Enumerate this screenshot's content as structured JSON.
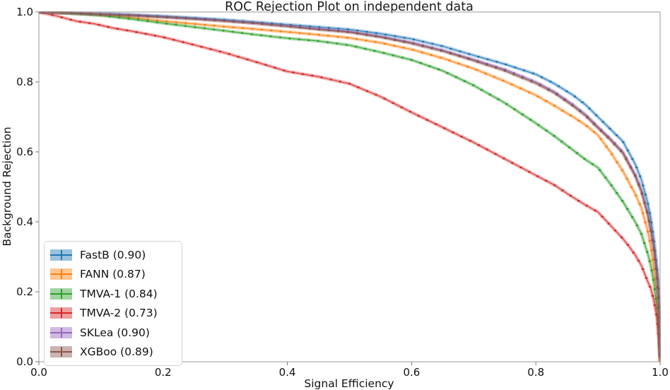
{
  "chart_data": {
    "type": "line",
    "title": "ROC Rejection Plot on independent data",
    "xlabel": "Signal Efficiency",
    "ylabel": "Background Rejection",
    "xlim": [
      0.0,
      1.0
    ],
    "ylim": [
      0.0,
      1.0
    ],
    "xtick_labels": [
      "0.0",
      "0.2",
      "0.4",
      "0.6",
      "0.8",
      "1.0"
    ],
    "ytick_labels": [
      "0.0",
      "0.2",
      "0.4",
      "0.6",
      "0.8",
      "1.0"
    ],
    "grid": false,
    "legend_position": "lower left",
    "marker_style": "dot-with-error-band",
    "series": [
      {
        "name": "FastB",
        "legend_label": "FastB (0.90)",
        "auc": 0.9,
        "color": "#1f77b4",
        "points": [
          [
            0,
            1.0
          ],
          [
            0.05,
            0.998
          ],
          [
            0.1,
            0.995
          ],
          [
            0.15,
            0.992
          ],
          [
            0.2,
            0.988
          ],
          [
            0.25,
            0.983
          ],
          [
            0.3,
            0.978
          ],
          [
            0.35,
            0.971
          ],
          [
            0.4,
            0.964
          ],
          [
            0.45,
            0.957
          ],
          [
            0.5,
            0.95
          ],
          [
            0.55,
            0.938
          ],
          [
            0.6,
            0.923
          ],
          [
            0.65,
            0.902
          ],
          [
            0.7,
            0.876
          ],
          [
            0.75,
            0.851
          ],
          [
            0.8,
            0.822
          ],
          [
            0.83,
            0.795
          ],
          [
            0.86,
            0.762
          ],
          [
            0.88,
            0.735
          ],
          [
            0.9,
            0.7
          ],
          [
            0.92,
            0.665
          ],
          [
            0.94,
            0.63
          ],
          [
            0.96,
            0.565
          ],
          [
            0.97,
            0.52
          ],
          [
            0.98,
            0.455
          ],
          [
            0.985,
            0.41
          ],
          [
            0.99,
            0.35
          ],
          [
            0.995,
            0.27
          ],
          [
            0.998,
            0.19
          ],
          [
            1.0,
            0.02
          ]
        ]
      },
      {
        "name": "FANN",
        "legend_label": "FANN (0.87)",
        "auc": 0.87,
        "color": "#ff7f0e",
        "points": [
          [
            0,
            1.0
          ],
          [
            0.05,
            0.997
          ],
          [
            0.1,
            0.992
          ],
          [
            0.15,
            0.984
          ],
          [
            0.2,
            0.974
          ],
          [
            0.25,
            0.966
          ],
          [
            0.3,
            0.958
          ],
          [
            0.35,
            0.951
          ],
          [
            0.4,
            0.943
          ],
          [
            0.45,
            0.935
          ],
          [
            0.5,
            0.926
          ],
          [
            0.55,
            0.912
          ],
          [
            0.6,
            0.893
          ],
          [
            0.65,
            0.868
          ],
          [
            0.7,
            0.838
          ],
          [
            0.75,
            0.802
          ],
          [
            0.8,
            0.762
          ],
          [
            0.83,
            0.732
          ],
          [
            0.86,
            0.7
          ],
          [
            0.88,
            0.677
          ],
          [
            0.9,
            0.648
          ],
          [
            0.92,
            0.6
          ],
          [
            0.94,
            0.545
          ],
          [
            0.96,
            0.48
          ],
          [
            0.97,
            0.44
          ],
          [
            0.98,
            0.375
          ],
          [
            0.985,
            0.33
          ],
          [
            0.99,
            0.265
          ],
          [
            0.995,
            0.185
          ],
          [
            0.998,
            0.1
          ],
          [
            1.0,
            0.0
          ]
        ]
      },
      {
        "name": "TMVA-1",
        "legend_label": "TMVA-1 (0.84)",
        "auc": 0.84,
        "color": "#2ca02c",
        "points": [
          [
            0,
            1.0
          ],
          [
            0.05,
            0.996
          ],
          [
            0.1,
            0.99
          ],
          [
            0.15,
            0.98
          ],
          [
            0.2,
            0.968
          ],
          [
            0.25,
            0.957
          ],
          [
            0.3,
            0.946
          ],
          [
            0.35,
            0.935
          ],
          [
            0.4,
            0.925
          ],
          [
            0.45,
            0.917
          ],
          [
            0.5,
            0.905
          ],
          [
            0.55,
            0.885
          ],
          [
            0.6,
            0.863
          ],
          [
            0.65,
            0.832
          ],
          [
            0.7,
            0.79
          ],
          [
            0.75,
            0.74
          ],
          [
            0.8,
            0.682
          ],
          [
            0.83,
            0.645
          ],
          [
            0.86,
            0.605
          ],
          [
            0.88,
            0.578
          ],
          [
            0.9,
            0.555
          ],
          [
            0.92,
            0.508
          ],
          [
            0.94,
            0.458
          ],
          [
            0.96,
            0.4
          ],
          [
            0.97,
            0.365
          ],
          [
            0.98,
            0.31
          ],
          [
            0.985,
            0.275
          ],
          [
            0.99,
            0.225
          ],
          [
            0.995,
            0.155
          ],
          [
            0.998,
            0.08
          ],
          [
            1.0,
            0.0
          ]
        ]
      },
      {
        "name": "TMVA-2",
        "legend_label": "TMVA-2 (0.73)",
        "auc": 0.73,
        "color": "#d62728",
        "points": [
          [
            0,
            1.0
          ],
          [
            0.03,
            0.988
          ],
          [
            0.06,
            0.974
          ],
          [
            0.09,
            0.966
          ],
          [
            0.12,
            0.954
          ],
          [
            0.15,
            0.945
          ],
          [
            0.2,
            0.928
          ],
          [
            0.25,
            0.906
          ],
          [
            0.3,
            0.883
          ],
          [
            0.35,
            0.857
          ],
          [
            0.4,
            0.83
          ],
          [
            0.45,
            0.815
          ],
          [
            0.5,
            0.795
          ],
          [
            0.55,
            0.758
          ],
          [
            0.6,
            0.713
          ],
          [
            0.65,
            0.67
          ],
          [
            0.7,
            0.627
          ],
          [
            0.75,
            0.58
          ],
          [
            0.8,
            0.533
          ],
          [
            0.83,
            0.505
          ],
          [
            0.86,
            0.47
          ],
          [
            0.88,
            0.448
          ],
          [
            0.9,
            0.428
          ],
          [
            0.92,
            0.39
          ],
          [
            0.94,
            0.352
          ],
          [
            0.95,
            0.33
          ],
          [
            0.96,
            0.305
          ],
          [
            0.97,
            0.275
          ],
          [
            0.98,
            0.23
          ],
          [
            0.985,
            0.21
          ],
          [
            0.99,
            0.175
          ],
          [
            0.995,
            0.125
          ],
          [
            0.998,
            0.06
          ],
          [
            1.0,
            0.0
          ]
        ]
      },
      {
        "name": "SKLea",
        "legend_label": "SKLea (0.90)",
        "auc": 0.9,
        "color": "#9467bd",
        "points": [
          [
            0,
            1.0
          ],
          [
            0.05,
            0.997
          ],
          [
            0.1,
            0.994
          ],
          [
            0.15,
            0.991
          ],
          [
            0.2,
            0.986
          ],
          [
            0.25,
            0.981
          ],
          [
            0.3,
            0.975
          ],
          [
            0.35,
            0.968
          ],
          [
            0.4,
            0.96
          ],
          [
            0.45,
            0.952
          ],
          [
            0.5,
            0.944
          ],
          [
            0.55,
            0.93
          ],
          [
            0.6,
            0.913
          ],
          [
            0.65,
            0.891
          ],
          [
            0.7,
            0.864
          ],
          [
            0.75,
            0.836
          ],
          [
            0.8,
            0.8
          ],
          [
            0.83,
            0.772
          ],
          [
            0.86,
            0.735
          ],
          [
            0.88,
            0.707
          ],
          [
            0.9,
            0.672
          ],
          [
            0.92,
            0.638
          ],
          [
            0.94,
            0.6
          ],
          [
            0.96,
            0.535
          ],
          [
            0.97,
            0.49
          ],
          [
            0.98,
            0.425
          ],
          [
            0.985,
            0.38
          ],
          [
            0.99,
            0.325
          ],
          [
            0.995,
            0.25
          ],
          [
            0.998,
            0.17
          ],
          [
            1.0,
            0.01
          ]
        ]
      },
      {
        "name": "XGBoo",
        "legend_label": "XGBoo (0.89)",
        "auc": 0.89,
        "color": "#8c564b",
        "points": [
          [
            0,
            1.0
          ],
          [
            0.05,
            0.997
          ],
          [
            0.1,
            0.993
          ],
          [
            0.15,
            0.99
          ],
          [
            0.2,
            0.985
          ],
          [
            0.25,
            0.98
          ],
          [
            0.3,
            0.974
          ],
          [
            0.35,
            0.967
          ],
          [
            0.4,
            0.959
          ],
          [
            0.45,
            0.95
          ],
          [
            0.5,
            0.942
          ],
          [
            0.55,
            0.928
          ],
          [
            0.6,
            0.91
          ],
          [
            0.65,
            0.888
          ],
          [
            0.7,
            0.861
          ],
          [
            0.75,
            0.832
          ],
          [
            0.8,
            0.796
          ],
          [
            0.83,
            0.768
          ],
          [
            0.86,
            0.731
          ],
          [
            0.88,
            0.703
          ],
          [
            0.9,
            0.668
          ],
          [
            0.92,
            0.634
          ],
          [
            0.94,
            0.596
          ],
          [
            0.96,
            0.531
          ],
          [
            0.97,
            0.486
          ],
          [
            0.98,
            0.421
          ],
          [
            0.985,
            0.376
          ],
          [
            0.99,
            0.321
          ],
          [
            0.995,
            0.246
          ],
          [
            0.998,
            0.165
          ],
          [
            1.0,
            0.01
          ]
        ]
      }
    ],
    "style": {
      "spine_color": "#9a9a9a",
      "tick_color": "#7a7a7a",
      "band_opacity": 0.32,
      "background": "#ffffff"
    }
  }
}
